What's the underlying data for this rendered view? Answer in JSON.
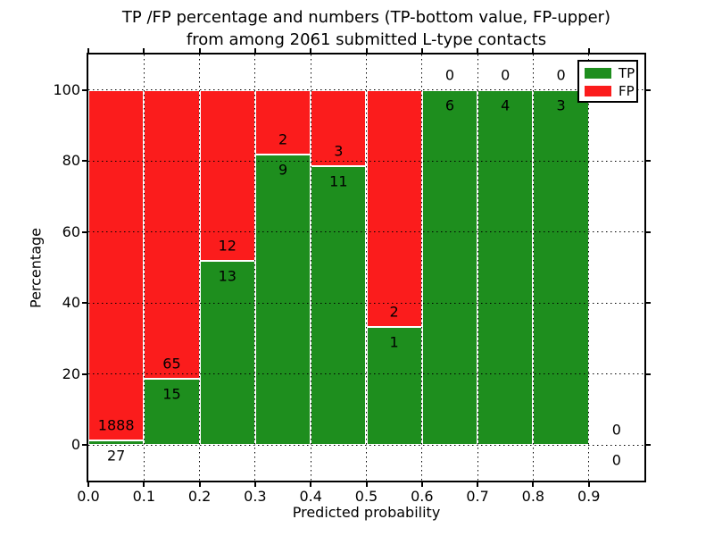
{
  "title": {
    "line1": "TP /FP percentage and numbers (TP-bottom value, FP-upper)",
    "line2": "from among 2061 submitted L-type contacts"
  },
  "chart_data": {
    "type": "bar",
    "stacked": true,
    "title": "TP /FP percentage and numbers (TP-bottom value, FP-upper)\nfrom among 2061 submitted L-type contacts",
    "title_lines": [
      "TP /FP percentage and numbers (TP-bottom value, FP-upper)",
      "from among 2061 submitted L-type contacts"
    ],
    "xlabel": "Predicted probability",
    "ylabel": "Percentage",
    "xlim": [
      0.0,
      1.0
    ],
    "ylim": [
      -10,
      110
    ],
    "xticks": [
      "0.0",
      "0.1",
      "0.2",
      "0.3",
      "0.4",
      "0.5",
      "0.6",
      "0.7",
      "0.8",
      "0.9"
    ],
    "yticks": [
      0,
      20,
      40,
      60,
      80,
      100
    ],
    "grid": {
      "style": "dotted",
      "color": "#000000",
      "on": true
    },
    "total_contacts": 2061,
    "colors": {
      "tp": "#1e8e1e",
      "fp": "#fb1c1c",
      "bar_edge": "#ffffff",
      "background": "#ffffff"
    },
    "legend": {
      "position": "upper-right",
      "entries": [
        {
          "label": "TP",
          "color": "#1e8e1e"
        },
        {
          "label": "FP",
          "color": "#fb1c1c"
        }
      ]
    },
    "bins": [
      {
        "range": [
          0.0,
          0.1
        ],
        "tp": 27,
        "fp": 1888,
        "tp_pct": 1.41
      },
      {
        "range": [
          0.1,
          0.2
        ],
        "tp": 15,
        "fp": 65,
        "tp_pct": 18.75
      },
      {
        "range": [
          0.2,
          0.3
        ],
        "tp": 13,
        "fp": 12,
        "tp_pct": 52.0
      },
      {
        "range": [
          0.3,
          0.4
        ],
        "tp": 9,
        "fp": 2,
        "tp_pct": 81.82
      },
      {
        "range": [
          0.4,
          0.5
        ],
        "tp": 11,
        "fp": 3,
        "tp_pct": 78.57
      },
      {
        "range": [
          0.5,
          0.6
        ],
        "tp": 1,
        "fp": 2,
        "tp_pct": 33.33
      },
      {
        "range": [
          0.6,
          0.7
        ],
        "tp": 6,
        "fp": 0,
        "tp_pct": 100
      },
      {
        "range": [
          0.7,
          0.8
        ],
        "tp": 4,
        "fp": 0,
        "tp_pct": 100
      },
      {
        "range": [
          0.8,
          0.9
        ],
        "tp": 3,
        "fp": 0,
        "tp_pct": 100
      },
      {
        "range": [
          0.9,
          1.0
        ],
        "tp": 0,
        "fp": 0,
        "tp_pct": null
      }
    ]
  }
}
